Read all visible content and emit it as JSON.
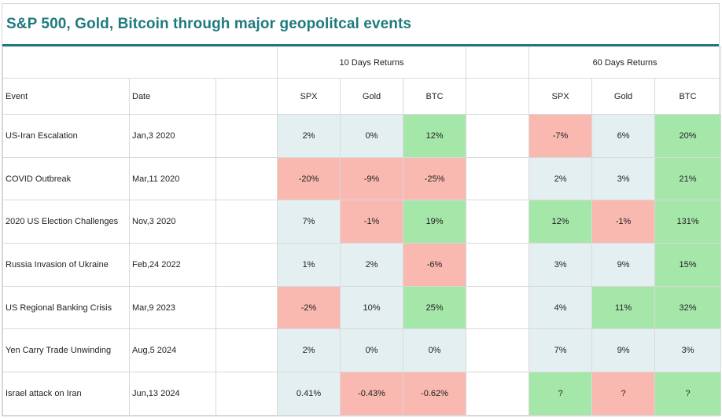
{
  "title": "S&P 500, Gold, Bitcoin through major geopolitcal events",
  "group_headers": {
    "ten_day": "10 Days Returns",
    "sixty_day": "60 Days Returns"
  },
  "columns": {
    "event": "Event",
    "date": "Date",
    "spx": "SPX",
    "gold": "Gold",
    "btc": "BTC"
  },
  "colors": {
    "accent": "#1f7a7e",
    "positive": "#a5e7a9",
    "negative": "#f9b8b0",
    "neutral": "#e4eff1"
  },
  "rows": [
    {
      "event": "US-Iran Escalation",
      "date": "Jan,3 2020",
      "d10": {
        "spx": "2%",
        "gold": "0%",
        "btc": "12%"
      },
      "d60": {
        "spx": "-7%",
        "gold": "6%",
        "btc": "20%"
      }
    },
    {
      "event": "COVID Outbreak",
      "date": "Mar,11 2020",
      "d10": {
        "spx": "-20%",
        "gold": "-9%",
        "btc": "-25%"
      },
      "d60": {
        "spx": "2%",
        "gold": "3%",
        "btc": "21%"
      }
    },
    {
      "event": "2020 US Election Challenges",
      "date": "Nov,3 2020",
      "d10": {
        "spx": "7%",
        "gold": "-1%",
        "btc": "19%"
      },
      "d60": {
        "spx": "12%",
        "gold": "-1%",
        "btc": "131%"
      }
    },
    {
      "event": "Russia Invasion of Ukraine",
      "date": "Feb,24 2022",
      "d10": {
        "spx": "1%",
        "gold": "2%",
        "btc": "-6%"
      },
      "d60": {
        "spx": "3%",
        "gold": "9%",
        "btc": "15%"
      }
    },
    {
      "event": "US Regional Banking Crisis",
      "date": "Mar,9 2023",
      "d10": {
        "spx": "-2%",
        "gold": "10%",
        "btc": "25%"
      },
      "d60": {
        "spx": "4%",
        "gold": "11%",
        "btc": "32%"
      }
    },
    {
      "event": "Yen Carry Trade Unwinding",
      "date": "Aug,5 2024",
      "d10": {
        "spx": "2%",
        "gold": "0%",
        "btc": "0%"
      },
      "d60": {
        "spx": "7%",
        "gold": "9%",
        "btc": "3%"
      }
    },
    {
      "event": "Israel attack on Iran",
      "date": "Jun,13 2024",
      "d10": {
        "spx": "0.41%",
        "gold": "-0.43%",
        "btc": "-0.62%"
      },
      "d60": {
        "spx": "?",
        "gold": "?",
        "btc": "?"
      }
    }
  ]
}
